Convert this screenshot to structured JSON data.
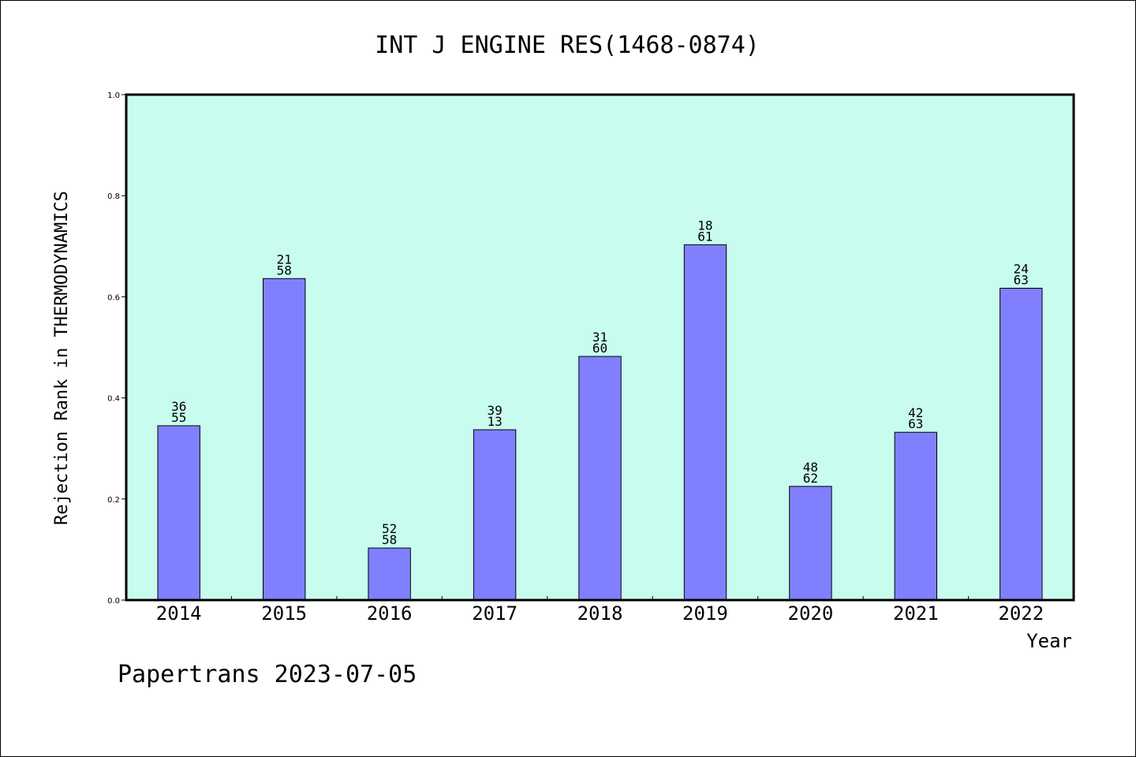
{
  "chart_data": {
    "type": "bar",
    "title": "INT J ENGINE RES(1468-0874)",
    "xlabel": "Year",
    "ylabel": "Rejection Rank in THERMODYNAMICS",
    "ylim": [
      0,
      1.0
    ],
    "yticks": [
      "0.0",
      "0.2",
      "0.4",
      "0.6",
      "0.8",
      "1.0"
    ],
    "categories": [
      "2014",
      "2015",
      "2016",
      "2017",
      "2018",
      "2019",
      "2020",
      "2021",
      "2022"
    ],
    "values": [
      0.345,
      0.636,
      0.103,
      0.337,
      0.482,
      0.703,
      0.225,
      0.332,
      0.617
    ],
    "label_top": [
      "36",
      "21",
      "52",
      "39",
      "31",
      "18",
      "48",
      "42",
      "24"
    ],
    "label_bottom": [
      "55",
      "58",
      "58",
      "13",
      "60",
      "61",
      "62",
      "63",
      "63"
    ],
    "grid": false,
    "colors": {
      "plot_background": "#c8fcee",
      "bar_fill": "#8080ff",
      "bar_stroke": "#000000"
    }
  },
  "footer": {
    "text": "Papertrans 2023-07-05"
  }
}
